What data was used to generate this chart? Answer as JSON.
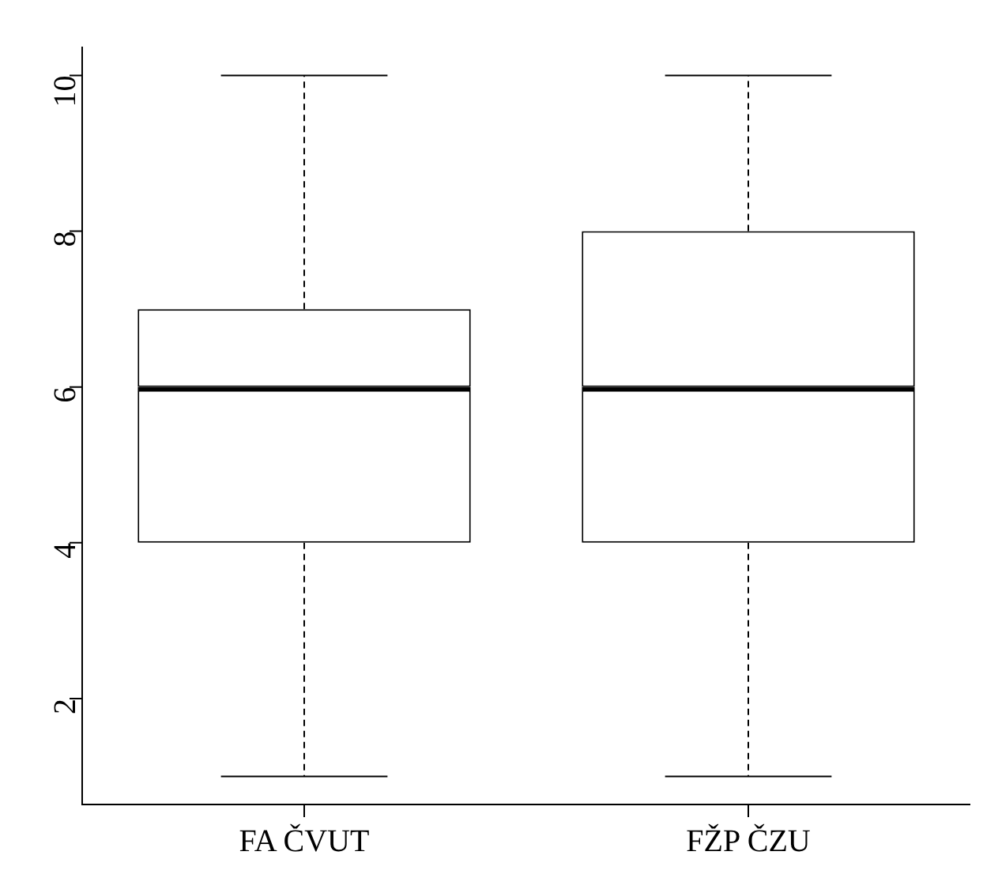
{
  "chart_data": {
    "type": "box",
    "categories": [
      "FA ČVUT",
      "FŽP ČZU"
    ],
    "boxes": [
      {
        "low": 1,
        "q1": 4,
        "median": 6,
        "q3": 7,
        "high": 10
      },
      {
        "low": 1,
        "q1": 4,
        "median": 6,
        "q3": 8,
        "high": 10
      }
    ],
    "ylim": [
      0.64,
      10.36
    ],
    "yticks": [
      2,
      4,
      6,
      8,
      10
    ],
    "grid": false,
    "legend": false
  }
}
